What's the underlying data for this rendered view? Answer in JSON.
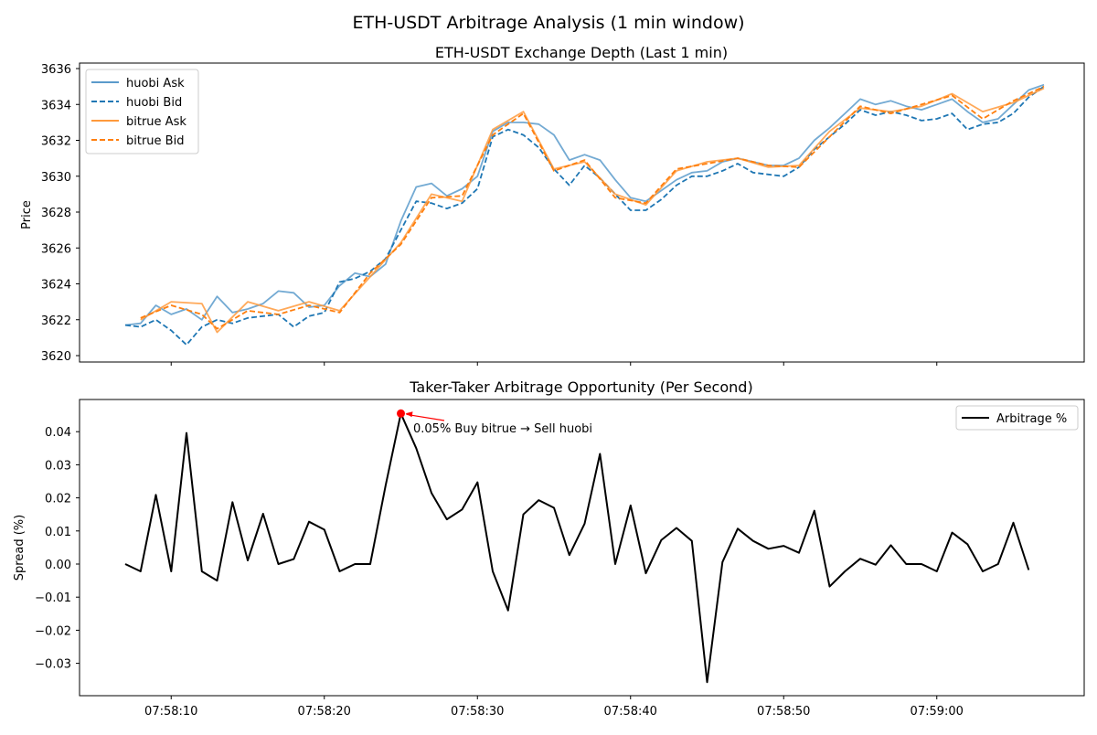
{
  "figure": {
    "title": "ETH-USDT Arbitrage Analysis (1 min window)"
  },
  "chart_data": [
    {
      "type": "line",
      "title": "ETH-USDT Exchange Depth (Last 1 min)",
      "xlabel": "",
      "ylabel": "Price",
      "x_unit": "seconds since 07:58:07",
      "xlim_seconds": [
        0,
        60
      ],
      "ylim": [
        3620,
        3636
      ],
      "y_ticks": [
        3620,
        3622,
        3624,
        3626,
        3628,
        3630,
        3632,
        3634,
        3636
      ],
      "x_tick_labels_hidden": true,
      "legend_position": "top-left",
      "legend": [
        "huobi Ask",
        "huobi Bid",
        "bitrue Ask",
        "bitrue Bid"
      ],
      "series": [
        {
          "name": "huobi Ask",
          "color": "#5b9bcb",
          "style": "solid",
          "x": [
            0,
            1,
            2,
            3,
            4,
            5,
            6,
            7,
            8,
            9,
            10,
            11,
            12,
            13,
            14,
            15,
            16,
            17,
            18,
            19,
            20,
            21,
            22,
            23,
            24,
            25,
            26,
            27,
            28,
            29,
            30,
            31,
            32,
            33,
            34,
            35,
            36,
            37,
            38,
            39,
            40,
            41,
            42,
            43,
            44,
            45,
            46,
            47,
            48,
            49,
            50,
            51,
            52,
            53,
            54,
            55,
            56,
            57,
            58,
            59,
            60
          ],
          "values": [
            3621.7,
            3621.8,
            3622.8,
            3622.3,
            3622.6,
            3622.0,
            3623.3,
            3622.4,
            3622.6,
            3622.9,
            3623.6,
            3623.5,
            3622.7,
            3622.8,
            3623.9,
            3624.6,
            3624.4,
            3625.1,
            3627.5,
            3629.4,
            3629.6,
            3628.9,
            3629.3,
            3630.0,
            3632.5,
            3633.0,
            3633.0,
            3632.9,
            3632.3,
            3630.9,
            3631.2,
            3630.9,
            3629.8,
            3628.8,
            3628.6,
            3629.2,
            3629.8,
            3630.2,
            3630.3,
            3630.8,
            3631.0,
            3630.8,
            3630.6,
            3630.6,
            3631.0,
            3632.0,
            3632.7,
            3633.5,
            3634.3,
            3634.0,
            3634.2,
            3633.9,
            3633.7,
            3634.0,
            3634.3,
            3633.6,
            3633.0,
            3633.2,
            3634.0,
            3634.8,
            3635.1
          ]
        },
        {
          "name": "huobi Bid",
          "color": "#1f77b4",
          "style": "dashed",
          "x": [
            0,
            1,
            2,
            3,
            4,
            5,
            6,
            7,
            8,
            9,
            10,
            11,
            12,
            13,
            14,
            15,
            16,
            17,
            18,
            19,
            20,
            21,
            22,
            23,
            24,
            25,
            26,
            27,
            28,
            29,
            30,
            31,
            32,
            33,
            34,
            35,
            36,
            37,
            38,
            39,
            40,
            41,
            42,
            43,
            44,
            45,
            46,
            47,
            48,
            49,
            50,
            51,
            52,
            53,
            54,
            55,
            56,
            57,
            58,
            59,
            60
          ],
          "values": [
            3621.7,
            3621.6,
            3622.0,
            3621.4,
            3620.6,
            3621.6,
            3622.0,
            3621.8,
            3622.1,
            3622.2,
            3622.3,
            3621.6,
            3622.2,
            3622.4,
            3624.1,
            3624.3,
            3624.7,
            3625.4,
            3627.0,
            3628.6,
            3628.5,
            3628.2,
            3628.5,
            3629.3,
            3632.2,
            3632.6,
            3632.3,
            3631.6,
            3630.4,
            3629.5,
            3630.6,
            3629.9,
            3629.0,
            3628.1,
            3628.1,
            3628.7,
            3629.5,
            3630.0,
            3630.0,
            3630.3,
            3630.7,
            3630.2,
            3630.1,
            3630.0,
            3630.5,
            3631.5,
            3632.2,
            3632.9,
            3633.7,
            3633.4,
            3633.6,
            3633.4,
            3633.1,
            3633.2,
            3633.5,
            3632.6,
            3632.9,
            3633.0,
            3633.5,
            3634.4,
            3635.0
          ]
        },
        {
          "name": "bitrue Ask",
          "color": "#ff9a3c",
          "style": "solid",
          "x": [
            1,
            3,
            5,
            6,
            8,
            10,
            12,
            14,
            16,
            18,
            20,
            22,
            24,
            26,
            28,
            30,
            32,
            34,
            36,
            38,
            40,
            42,
            44,
            46,
            48,
            50,
            52,
            54,
            56,
            58,
            60
          ],
          "values": [
            3622.0,
            3623.0,
            3622.9,
            3621.3,
            3623.0,
            3622.5,
            3623.0,
            3622.5,
            3624.4,
            3626.3,
            3629.0,
            3628.6,
            3632.6,
            3633.6,
            3630.4,
            3630.8,
            3629.0,
            3628.4,
            3630.3,
            3630.8,
            3631.0,
            3630.5,
            3630.6,
            3632.5,
            3633.8,
            3633.6,
            3633.9,
            3634.6,
            3633.6,
            3634.1,
            3634.9
          ]
        },
        {
          "name": "bitrue Bid",
          "color": "#ff7f0e",
          "style": "dashed",
          "x": [
            1,
            3,
            5,
            6,
            8,
            10,
            12,
            14,
            16,
            18,
            20,
            22,
            24,
            26,
            28,
            30,
            32,
            34,
            36,
            38,
            40,
            42,
            44,
            46,
            48,
            50,
            52,
            54,
            56,
            58,
            60
          ],
          "values": [
            3622.1,
            3622.8,
            3622.3,
            3621.5,
            3622.5,
            3622.3,
            3622.8,
            3622.4,
            3624.6,
            3626.2,
            3628.8,
            3628.9,
            3632.3,
            3633.5,
            3630.3,
            3630.9,
            3628.8,
            3628.5,
            3630.4,
            3630.7,
            3631.0,
            3630.6,
            3630.5,
            3632.2,
            3633.9,
            3633.5,
            3634.0,
            3634.5,
            3633.2,
            3634.2,
            3635.0
          ]
        }
      ]
    },
    {
      "type": "line",
      "title": "Taker-Taker Arbitrage Opportunity (Per Second)",
      "xlabel": "",
      "ylabel": "Spread (%)",
      "x_unit": "seconds since 07:58:07",
      "xlim_seconds": [
        0,
        60
      ],
      "ylim": [
        -0.035,
        0.045
      ],
      "y_ticks": [
        -0.03,
        -0.02,
        -0.01,
        0.0,
        0.01,
        0.02,
        0.03,
        0.04
      ],
      "y_tick_labels": [
        "−0.03",
        "−0.02",
        "−0.01",
        "0.00",
        "0.01",
        "0.02",
        "0.03",
        "0.04"
      ],
      "x_ticks": [
        "07:58:10",
        "07:58:20",
        "07:58:30",
        "07:58:40",
        "07:58:50",
        "07:59:00"
      ],
      "legend_position": "top-right",
      "legend": [
        "Arbitrage %"
      ],
      "series": [
        {
          "name": "Arbitrage %",
          "color": "#000000",
          "x": [
            0,
            1,
            2,
            3,
            4,
            5,
            6,
            7,
            8,
            9,
            10,
            11,
            12,
            13,
            14,
            15,
            16,
            17,
            18,
            19,
            20,
            21,
            22,
            23,
            24,
            25,
            26,
            27,
            28,
            29,
            30,
            31,
            32,
            33,
            34,
            35,
            36,
            37,
            38,
            39,
            40,
            41,
            42,
            43,
            44,
            45,
            46,
            47,
            48,
            49,
            50,
            51,
            52,
            53,
            54,
            55,
            56,
            57,
            58,
            59
          ],
          "values": [
            0.0,
            -0.0022,
            0.0209,
            -0.0022,
            0.0396,
            -0.0022,
            -0.005,
            0.0187,
            0.0011,
            0.0152,
            0.0,
            0.0015,
            0.0128,
            0.0104,
            -0.0022,
            0.0,
            0.0,
            0.0237,
            0.0455,
            0.035,
            0.0215,
            0.0135,
            0.0165,
            0.0247,
            -0.0022,
            -0.014,
            0.015,
            0.0193,
            0.017,
            0.0027,
            0.0122,
            0.0333,
            0.0,
            0.0177,
            -0.0028,
            0.0072,
            0.0109,
            0.007,
            -0.0357,
            0.0006,
            0.0107,
            0.007,
            0.0046,
            0.0055,
            0.0034,
            0.0161,
            -0.0068,
            -0.0022,
            0.0016,
            -0.0002,
            0.0057,
            0.0,
            0.0,
            -0.0022,
            0.0095,
            0.006,
            -0.0022,
            0.0,
            0.0125,
            -0.0018
          ]
        }
      ],
      "annotation": {
        "text": "0.05% Buy bitrue → Sell huobi",
        "x": 18,
        "y": 0.0455,
        "marker_color": "#ff0000"
      }
    }
  ]
}
